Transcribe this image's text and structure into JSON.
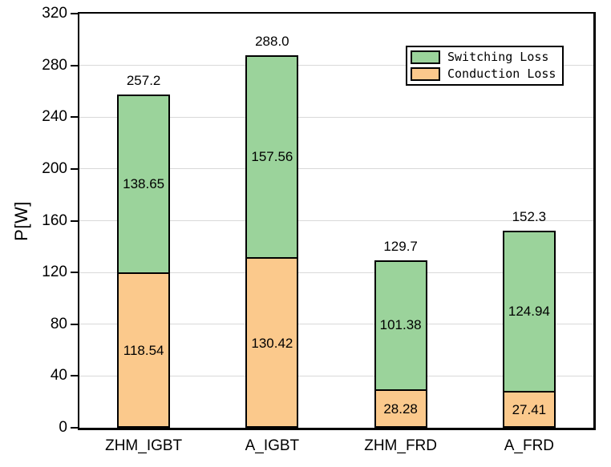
{
  "chart_data": {
    "type": "bar",
    "stacked": true,
    "title": "",
    "xlabel": "",
    "ylabel": "P[W]",
    "ylim": [
      0,
      320
    ],
    "yticks": [
      0,
      40,
      80,
      120,
      160,
      200,
      240,
      280,
      320
    ],
    "grid": true,
    "gridline_color": "#d9d9d9",
    "categories": [
      "ZHM_IGBT",
      "A_IGBT",
      "ZHM_FRD",
      "A_FRD"
    ],
    "series": [
      {
        "name": "Conduction Loss",
        "color": "#fbc98c",
        "values": [
          118.54,
          130.42,
          28.28,
          27.41
        ]
      },
      {
        "name": "Switching Loss",
        "color": "#9bd39b",
        "values": [
          138.65,
          157.56,
          101.38,
          124.94
        ]
      }
    ],
    "segment_labels": {
      "Conduction Loss": [
        "118.54",
        "130.42",
        "28.28",
        "27.41"
      ],
      "Switching Loss": [
        "138.65",
        "157.56",
        "101.38",
        "124.94"
      ]
    },
    "totals": [
      "257.2",
      "288.0",
      "129.7",
      "152.3"
    ],
    "legend": {
      "position": "top-right",
      "entries": [
        {
          "label": "Switching Loss",
          "color": "#9bd39b"
        },
        {
          "label": "Conduction Loss",
          "color": "#fbc98c"
        }
      ]
    }
  }
}
